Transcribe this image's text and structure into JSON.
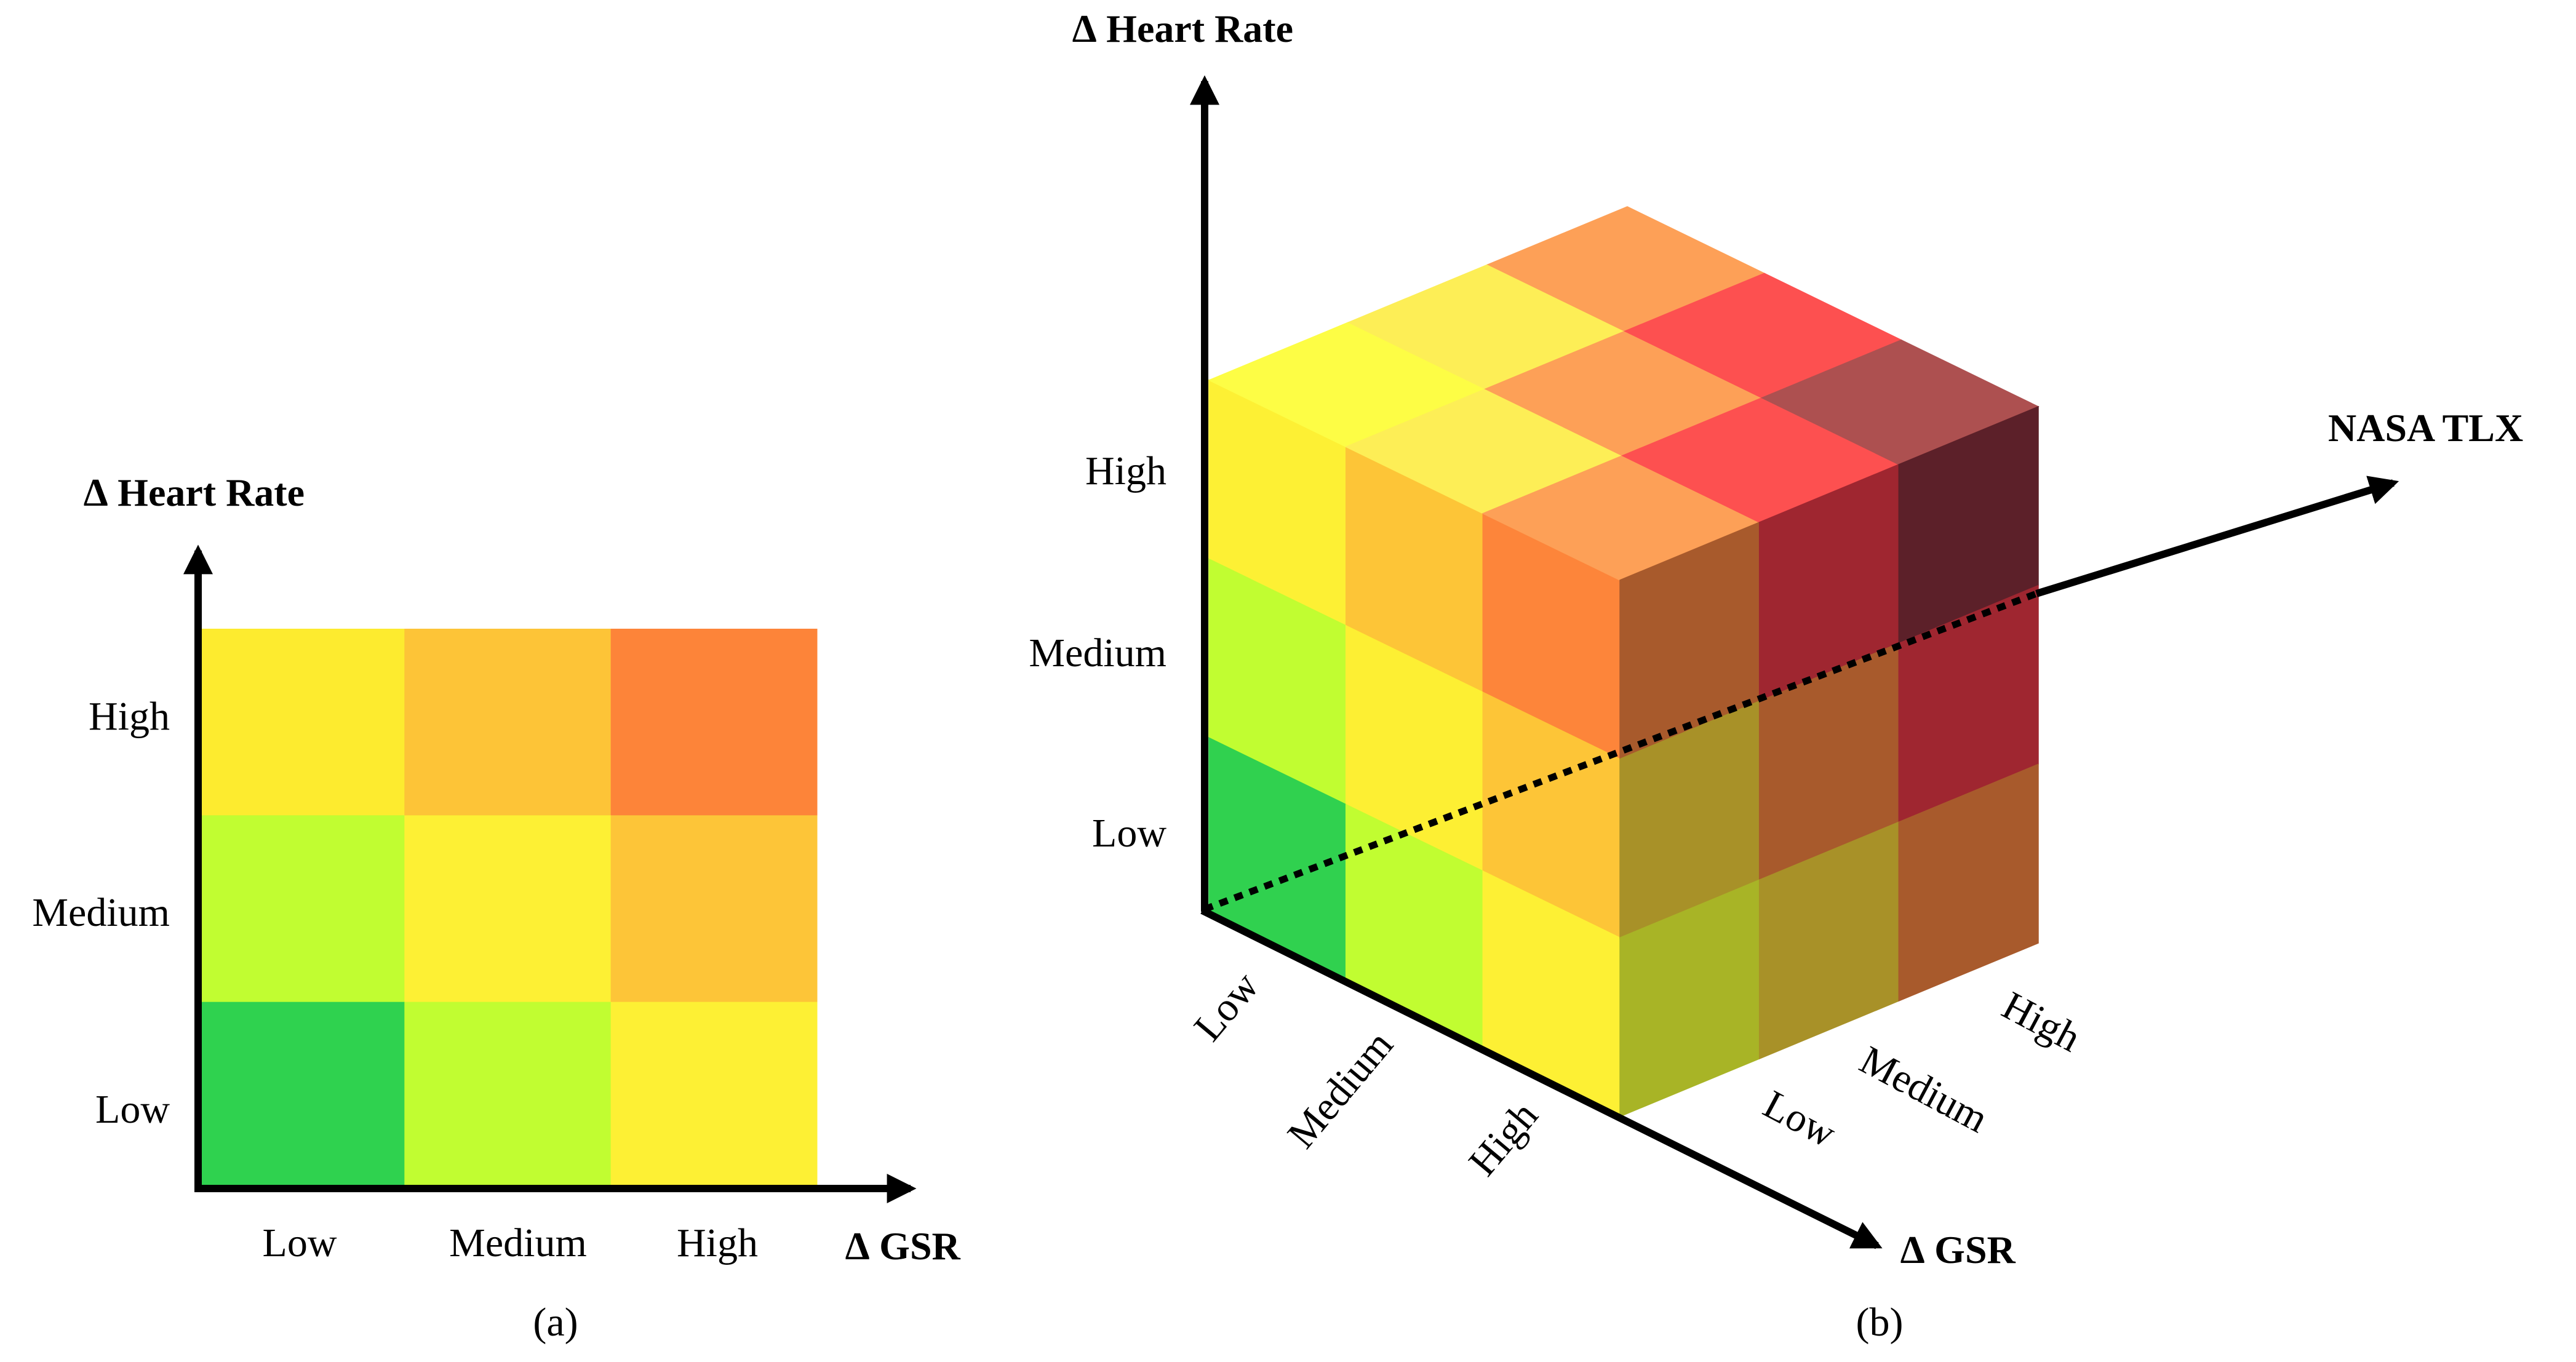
{
  "panel_a": {
    "caption": "(a)",
    "y_axis_title": "∆ Heart Rate",
    "x_axis_title": "∆ GSR",
    "y_ticks": [
      "High",
      "Medium",
      "Low"
    ],
    "x_ticks": [
      "Low",
      "Medium",
      "High"
    ],
    "grid_colors": [
      [
        "#fdeb2f",
        "#fdc437",
        "#fd8439"
      ],
      [
        "#c1fd31",
        "#fdf034",
        "#fdc538"
      ],
      [
        "#2fd24f",
        "#c1fd31",
        "#fdf034"
      ]
    ]
  },
  "panel_b": {
    "caption": "(b)",
    "y_axis_title": "∆ Heart Rate",
    "x_axis_title": "∆ GSR",
    "z_axis_title": "NASA TLX",
    "y_ticks": [
      "High",
      "Medium",
      "Low"
    ],
    "x_ticks": [
      "Low",
      "Medium",
      "High"
    ],
    "z_ticks": [
      "Low",
      "Medium",
      "High"
    ],
    "front_face_colors": [
      [
        "#fdf034",
        "#fdc537",
        "#fd853a"
      ],
      [
        "#c1fd31",
        "#fdef33",
        "#fdc537"
      ],
      [
        "#30d14f",
        "#c1fd31",
        "#fdf034"
      ]
    ],
    "top_face_colors": [
      [
        "#fdfd45",
        "#fdee56",
        "#fda057"
      ],
      [
        "#fdee56",
        "#fda057",
        "#fd5050"
      ],
      [
        "#fda057",
        "#fd5050",
        "#ad5050"
      ]
    ],
    "right_face_colors": [
      [
        "#a85a2c",
        "#9f2630",
        "#5c2029"
      ],
      [
        "#a89128",
        "#a85a2c",
        "#9f2630"
      ],
      [
        "#a8b426",
        "#a89128",
        "#a85a2c"
      ]
    ]
  }
}
